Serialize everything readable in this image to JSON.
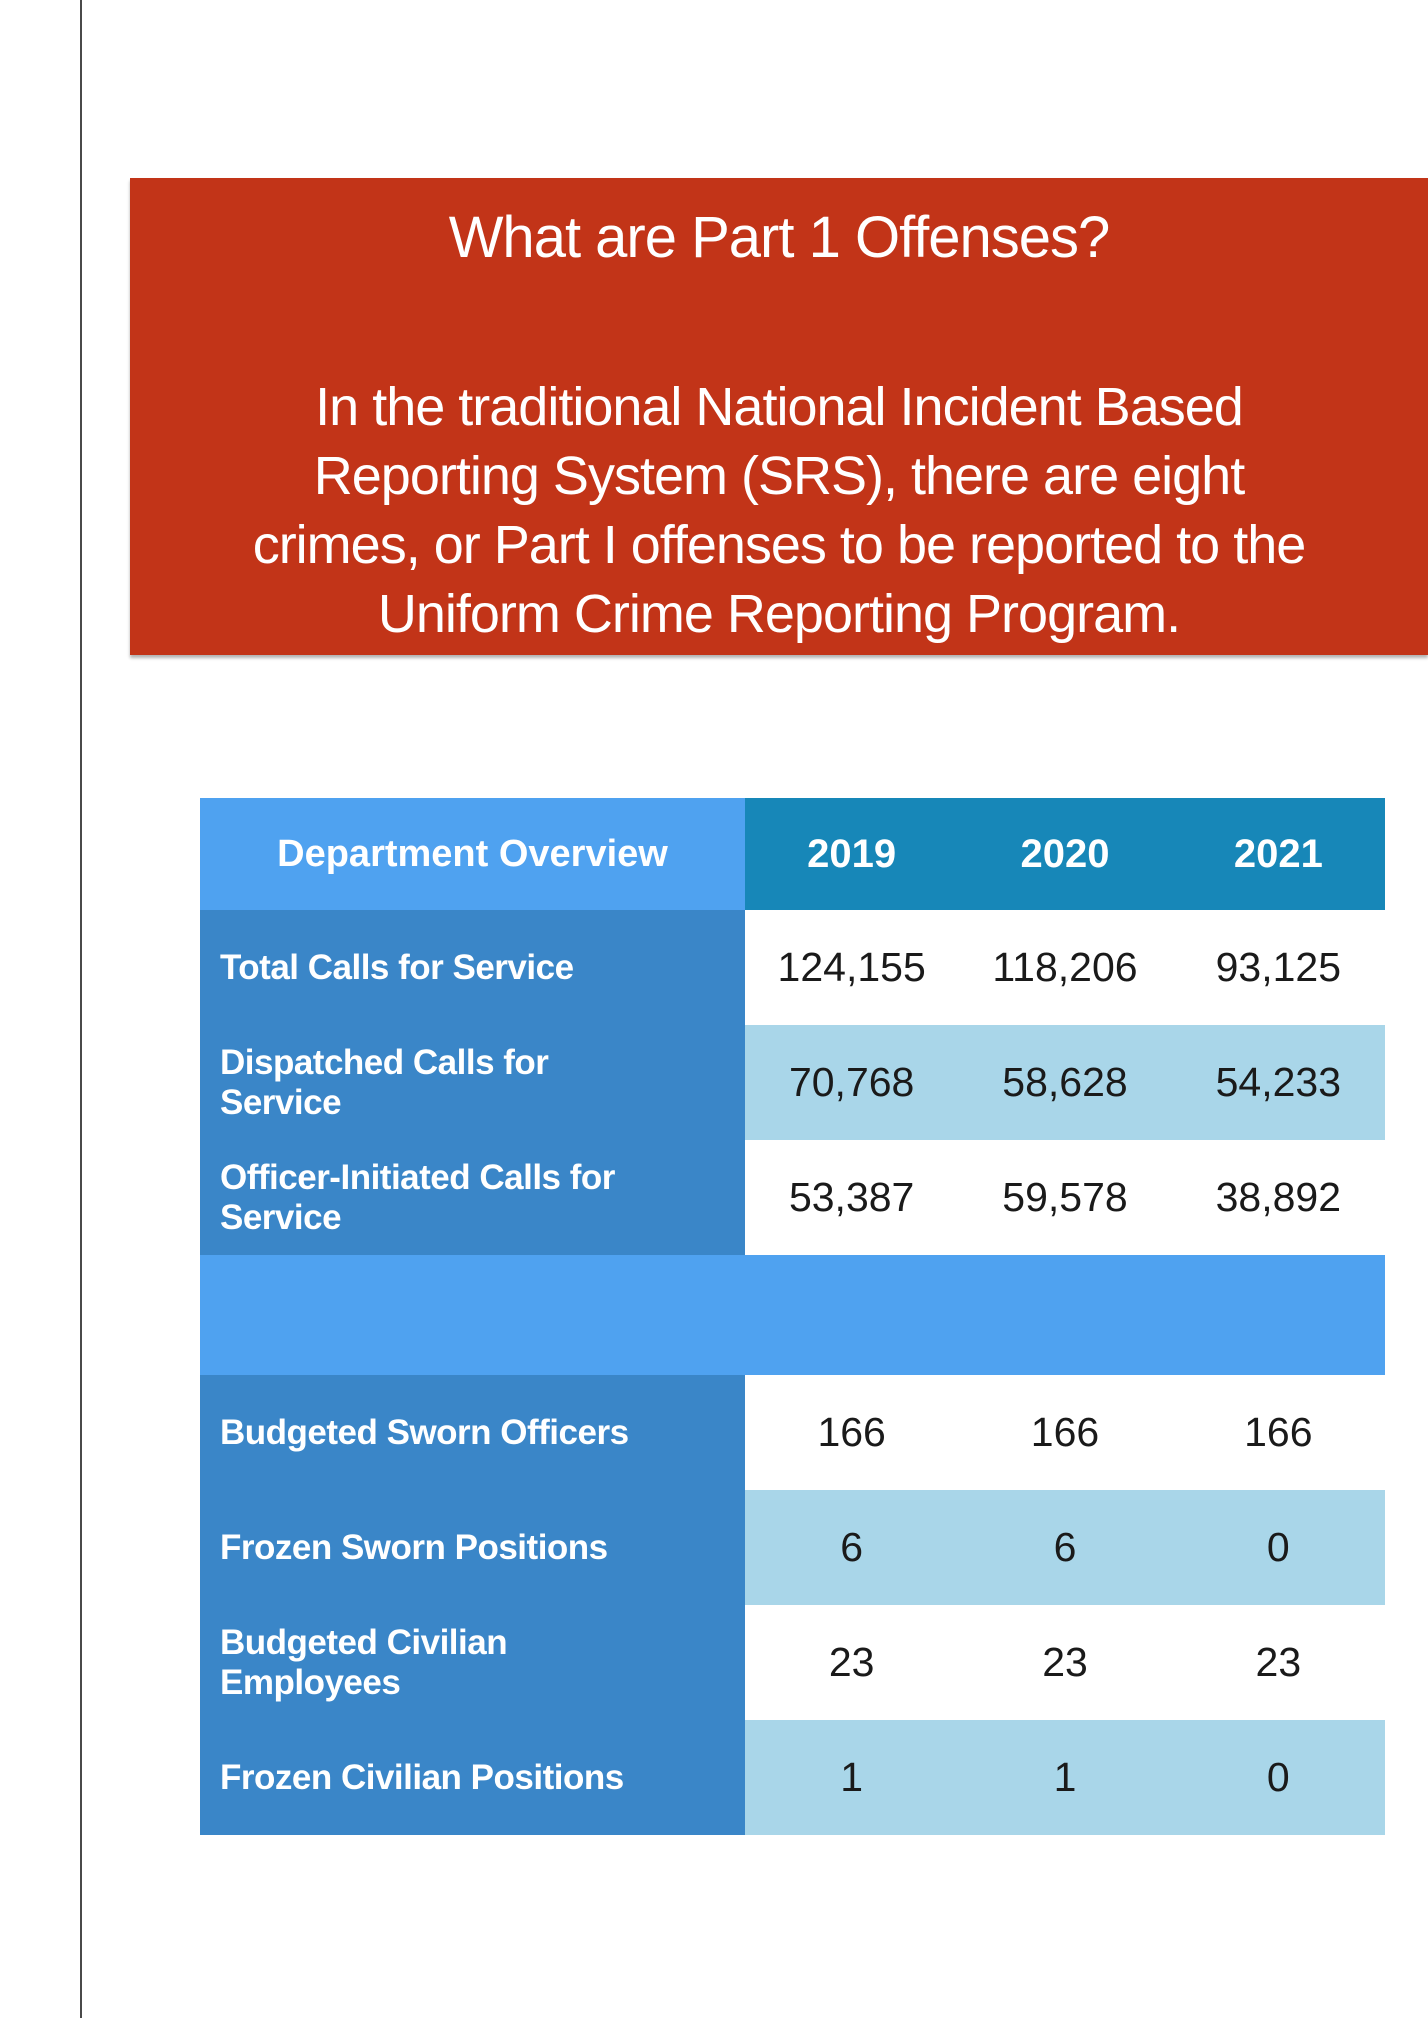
{
  "banner": {
    "title": "What are Part 1 Offenses?",
    "body": "In the traditional National Incident Based\nReporting System (SRS), there are eight\ncrimes, or Part I offenses to be reported to the\nUniform Crime Reporting Program."
  },
  "table": {
    "header": {
      "label": "Department Overview",
      "years": [
        "2019",
        "2020",
        "2021"
      ]
    },
    "rows": [
      {
        "type": "data",
        "label": "Total Calls for Service",
        "values": [
          "124,155",
          "118,206",
          "93,125"
        ]
      },
      {
        "type": "data",
        "label": "Dispatched Calls for\nService",
        "values": [
          "70,768",
          "58,628",
          "54,233"
        ]
      },
      {
        "type": "data",
        "label": "Officer-Initiated Calls for\nService",
        "values": [
          "53,387",
          "59,578",
          "38,892"
        ]
      },
      {
        "type": "separator"
      },
      {
        "type": "data",
        "label": "Budgeted Sworn Officers",
        "values": [
          "166",
          "166",
          "166"
        ]
      },
      {
        "type": "data",
        "label": "Frozen Sworn Positions",
        "values": [
          "6",
          "6",
          "0"
        ]
      },
      {
        "type": "data",
        "label": "Budgeted Civilian\nEmployees",
        "values": [
          "23",
          "23",
          "23"
        ]
      },
      {
        "type": "data",
        "label": "Frozen Civilian Positions",
        "values": [
          "1",
          "1",
          "0"
        ]
      }
    ]
  },
  "colors": {
    "banner_red": "#C23418",
    "header_light_blue": "#4FA2F0",
    "header_teal": "#1787B8",
    "label_blue": "#3A86C8",
    "stripe_blue": "#A9D6E9",
    "number_color": "#1A1A1A",
    "divider_gray": "#4A4A4A"
  }
}
